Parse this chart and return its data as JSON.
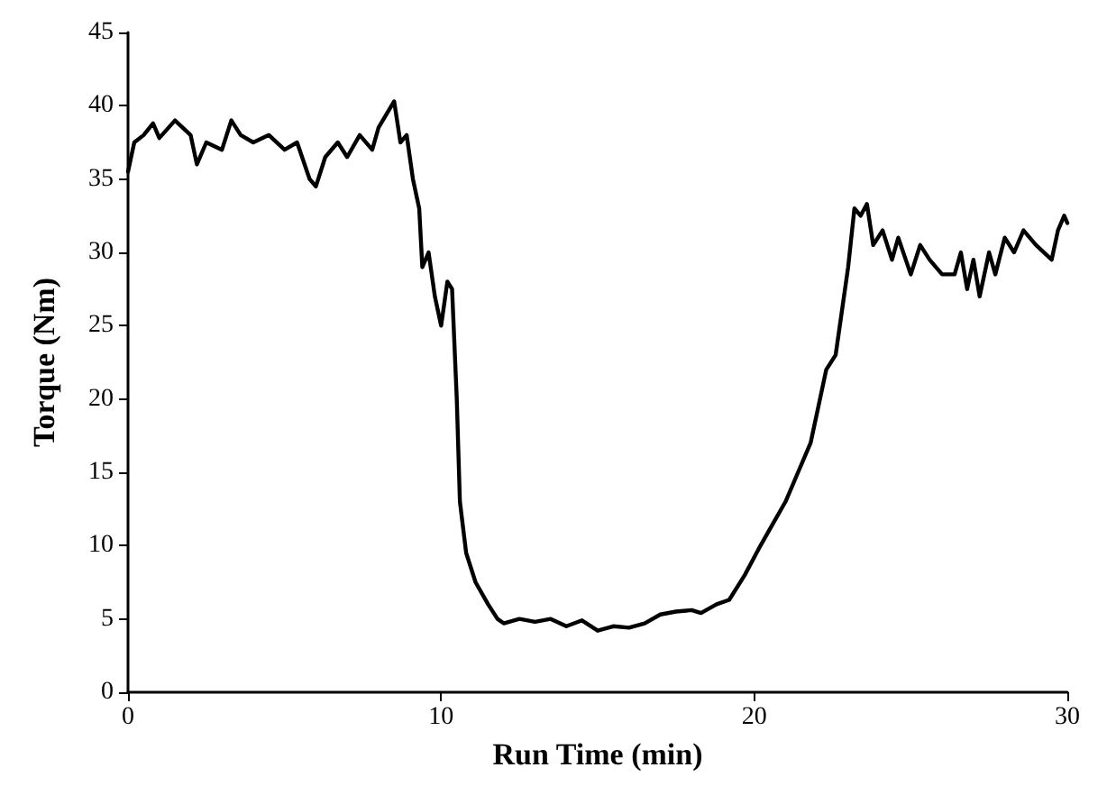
{
  "chart_data": {
    "type": "line",
    "xlabel": "Run Time (min)",
    "ylabel": "Torque (Nm)",
    "xlim": [
      0,
      30
    ],
    "xticks": [
      0,
      10,
      20,
      30
    ],
    "ylim": [
      0,
      45
    ],
    "yticks": [
      0,
      5,
      10,
      15,
      20,
      25,
      30,
      35,
      40,
      45
    ],
    "grid": false,
    "marker": "none",
    "line_style": "solid",
    "series": [
      {
        "color": "#000000",
        "x": [
          0,
          0.2,
          0.5,
          0.8,
          1.0,
          1.5,
          2.0,
          2.2,
          2.5,
          3.0,
          3.3,
          3.6,
          4.0,
          4.5,
          5.0,
          5.4,
          5.8,
          6.0,
          6.3,
          6.7,
          7.0,
          7.4,
          7.8,
          8.0,
          8.5,
          8.7,
          8.9,
          9.1,
          9.3,
          9.4,
          9.6,
          9.8,
          10.0,
          10.2,
          10.35,
          10.5,
          10.6,
          10.8,
          11.1,
          11.5,
          11.8,
          12.0,
          12.5,
          13.0,
          13.5,
          14.0,
          14.5,
          15.0,
          15.5,
          16.0,
          16.5,
          17.0,
          17.5,
          18.0,
          18.3,
          18.8,
          19.2,
          19.7,
          20.2,
          20.6,
          21.0,
          21.4,
          21.8,
          22.1,
          22.3,
          22.6,
          22.8,
          23.0,
          23.2,
          23.4,
          23.6,
          23.8,
          24.1,
          24.4,
          24.6,
          25.0,
          25.3,
          25.6,
          26.0,
          26.4,
          26.6,
          26.8,
          27.0,
          27.2,
          27.5,
          27.7,
          28.0,
          28.3,
          28.6,
          29.0,
          29.5,
          29.7,
          29.9,
          30.0
        ],
        "values": [
          35.5,
          37.5,
          38,
          38.8,
          37.8,
          39,
          38,
          36,
          37.5,
          37,
          39,
          38,
          37.5,
          38,
          37,
          37.5,
          35,
          34.5,
          36.5,
          37.5,
          36.5,
          38,
          37,
          38.5,
          40.3,
          37.5,
          38,
          35,
          33,
          29,
          30,
          27,
          25,
          28,
          27.5,
          20,
          13,
          9.5,
          7.5,
          6,
          5,
          4.7,
          5,
          4.8,
          5,
          4.5,
          4.9,
          4.2,
          4.5,
          4.4,
          4.7,
          5.3,
          5.5,
          5.6,
          5.4,
          6,
          6.3,
          8,
          10,
          11.5,
          13,
          15,
          17,
          20,
          22,
          23,
          26,
          29,
          33,
          32.5,
          33.3,
          30.5,
          31.5,
          29.5,
          31,
          28.5,
          30.5,
          29.5,
          28.5,
          28.5,
          30,
          27.5,
          29.5,
          27,
          30,
          28.5,
          31,
          30,
          31.5,
          30.5,
          29.5,
          31.5,
          32.5,
          32
        ]
      }
    ]
  }
}
